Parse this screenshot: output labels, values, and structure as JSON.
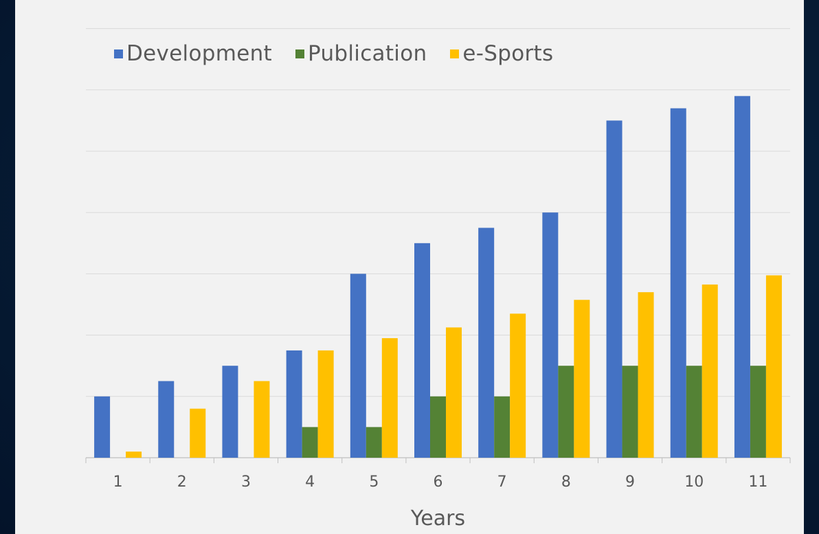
{
  "chart_data": {
    "type": "bar",
    "title": "",
    "xlabel": "Years",
    "ylabel": "",
    "categories": [
      "1",
      "2",
      "3",
      "4",
      "5",
      "6",
      "7",
      "8",
      "9",
      "10",
      "11"
    ],
    "ylim": [
      0,
      14
    ],
    "grid": true,
    "legend_position": "top-left",
    "series": [
      {
        "name": "Development",
        "color": "#4472c4",
        "values": [
          2.0,
          2.5,
          3.0,
          3.5,
          6.0,
          7.0,
          7.5,
          8.0,
          11.0,
          11.4,
          11.8
        ]
      },
      {
        "name": "Publication",
        "color": "#548235",
        "values": [
          0.0,
          0.0,
          0.0,
          1.0,
          1.0,
          2.0,
          2.0,
          3.0,
          3.0,
          3.0,
          3.0
        ]
      },
      {
        "name": "e-Sports",
        "color": "#ffc000",
        "values": [
          0.2,
          1.6,
          2.5,
          3.5,
          3.9,
          4.25,
          4.7,
          5.15,
          5.4,
          5.65,
          5.95
        ]
      }
    ]
  }
}
